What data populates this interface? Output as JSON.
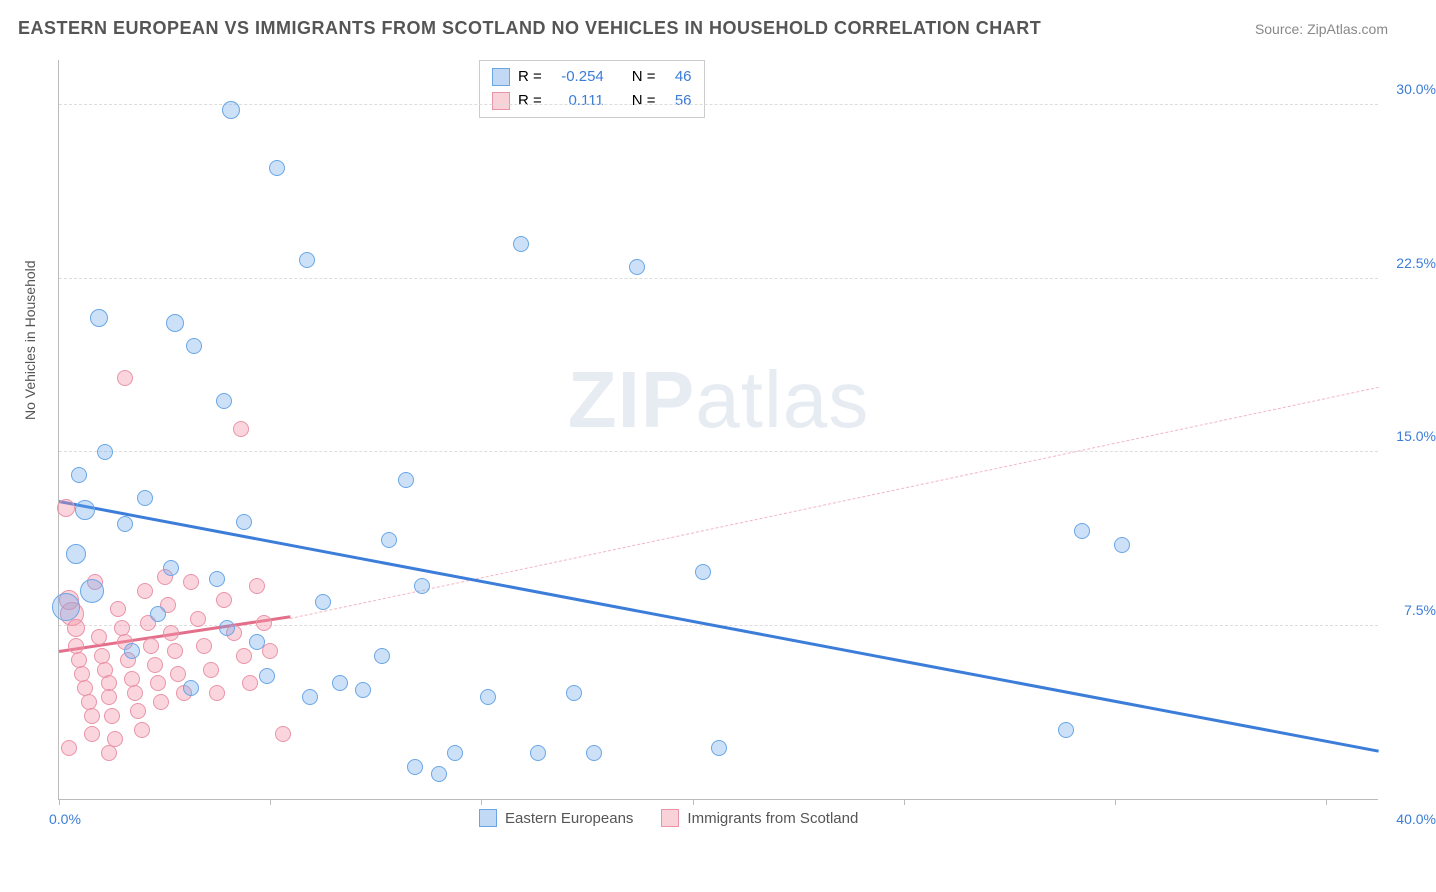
{
  "title": "EASTERN EUROPEAN VS IMMIGRANTS FROM SCOTLAND NO VEHICLES IN HOUSEHOLD CORRELATION CHART",
  "source": "Source: ZipAtlas.com",
  "y_axis_label": "No Vehicles in Household",
  "watermark": "ZIPatlas",
  "chart": {
    "type": "scatter",
    "xlim": [
      0,
      40
    ],
    "ylim": [
      0,
      32
    ],
    "x_ticks": [
      0,
      6.4,
      12.8,
      19.2,
      25.6,
      32.0,
      38.4
    ],
    "y_ticks": [
      7.5,
      15.0,
      22.5,
      30.0
    ],
    "y_tick_labels": [
      "7.5%",
      "15.0%",
      "22.5%",
      "30.0%"
    ],
    "x_min_label": "0.0%",
    "x_max_label": "40.0%",
    "grid_color": "#dddddd",
    "axis_color": "#bbbbbb",
    "background": "#ffffff",
    "tick_label_color": "#3b7dd8",
    "label_color": "#555555"
  },
  "series": {
    "blue": {
      "label": "Eastern Europeans",
      "fill": "rgba(110,170,235,0.35)",
      "stroke": "#6aa6e6",
      "r_stat": "-0.254",
      "n_stat": "46",
      "trend": {
        "x1": 0,
        "y1": 12.8,
        "x2": 40,
        "y2": 2.0,
        "color": "#3b7dd8",
        "width": 3,
        "dash": false
      },
      "points": [
        {
          "x": 5.2,
          "y": 29.8,
          "r": 9
        },
        {
          "x": 6.6,
          "y": 27.3,
          "r": 8
        },
        {
          "x": 7.5,
          "y": 23.3,
          "r": 8
        },
        {
          "x": 14.0,
          "y": 24.0,
          "r": 8
        },
        {
          "x": 17.5,
          "y": 23.0,
          "r": 8
        },
        {
          "x": 1.2,
          "y": 20.8,
          "r": 9
        },
        {
          "x": 3.5,
          "y": 20.6,
          "r": 9
        },
        {
          "x": 4.1,
          "y": 19.6,
          "r": 8
        },
        {
          "x": 5.0,
          "y": 17.2,
          "r": 8
        },
        {
          "x": 1.4,
          "y": 15.0,
          "r": 8
        },
        {
          "x": 0.6,
          "y": 14.0,
          "r": 8
        },
        {
          "x": 10.5,
          "y": 13.8,
          "r": 8
        },
        {
          "x": 2.0,
          "y": 11.9,
          "r": 8
        },
        {
          "x": 31.0,
          "y": 11.6,
          "r": 8
        },
        {
          "x": 32.2,
          "y": 11.0,
          "r": 8
        },
        {
          "x": 0.5,
          "y": 10.6,
          "r": 10
        },
        {
          "x": 19.5,
          "y": 9.8,
          "r": 8
        },
        {
          "x": 10.0,
          "y": 11.2,
          "r": 8
        },
        {
          "x": 1.0,
          "y": 9.0,
          "r": 12
        },
        {
          "x": 0.2,
          "y": 8.3,
          "r": 14
        },
        {
          "x": 4.8,
          "y": 9.5,
          "r": 8
        },
        {
          "x": 3.0,
          "y": 8.0,
          "r": 8
        },
        {
          "x": 5.1,
          "y": 7.4,
          "r": 8
        },
        {
          "x": 6.3,
          "y": 5.3,
          "r": 8
        },
        {
          "x": 7.6,
          "y": 4.4,
          "r": 8
        },
        {
          "x": 8.5,
          "y": 5.0,
          "r": 8
        },
        {
          "x": 9.2,
          "y": 4.7,
          "r": 8
        },
        {
          "x": 9.8,
          "y": 6.2,
          "r": 8
        },
        {
          "x": 10.8,
          "y": 1.4,
          "r": 8
        },
        {
          "x": 11.5,
          "y": 1.1,
          "r": 8
        },
        {
          "x": 12.0,
          "y": 2.0,
          "r": 8
        },
        {
          "x": 13.0,
          "y": 4.4,
          "r": 8
        },
        {
          "x": 14.5,
          "y": 2.0,
          "r": 8
        },
        {
          "x": 15.6,
          "y": 4.6,
          "r": 8
        },
        {
          "x": 16.2,
          "y": 2.0,
          "r": 8
        },
        {
          "x": 20.0,
          "y": 2.2,
          "r": 8
        },
        {
          "x": 11.0,
          "y": 9.2,
          "r": 8
        },
        {
          "x": 30.5,
          "y": 3.0,
          "r": 8
        },
        {
          "x": 6.0,
          "y": 6.8,
          "r": 8
        },
        {
          "x": 2.2,
          "y": 6.4,
          "r": 8
        },
        {
          "x": 4.0,
          "y": 4.8,
          "r": 8
        },
        {
          "x": 3.4,
          "y": 10.0,
          "r": 8
        },
        {
          "x": 0.8,
          "y": 12.5,
          "r": 10
        },
        {
          "x": 5.6,
          "y": 12.0,
          "r": 8
        },
        {
          "x": 8.0,
          "y": 8.5,
          "r": 8
        },
        {
          "x": 2.6,
          "y": 13.0,
          "r": 8
        }
      ]
    },
    "pink": {
      "label": "Immigrants from Scotland",
      "fill": "rgba(245,150,170,0.40)",
      "stroke": "#e994a8",
      "r_stat": "0.111",
      "n_stat": "56",
      "trend_solid": {
        "x1": 0,
        "y1": 6.3,
        "x2": 7,
        "y2": 7.8,
        "color": "#e36f8b",
        "width": 3,
        "dash": false
      },
      "trend_dash": {
        "x1": 7,
        "y1": 7.8,
        "x2": 40,
        "y2": 17.8,
        "color": "#f2b6c4",
        "width": 1,
        "dash": true
      },
      "points": [
        {
          "x": 0.2,
          "y": 12.6,
          "r": 9
        },
        {
          "x": 0.3,
          "y": 8.6,
          "r": 10
        },
        {
          "x": 0.4,
          "y": 8.0,
          "r": 12
        },
        {
          "x": 0.5,
          "y": 7.4,
          "r": 9
        },
        {
          "x": 0.5,
          "y": 6.6,
          "r": 8
        },
        {
          "x": 0.6,
          "y": 6.0,
          "r": 8
        },
        {
          "x": 0.7,
          "y": 5.4,
          "r": 8
        },
        {
          "x": 0.8,
          "y": 4.8,
          "r": 8
        },
        {
          "x": 0.9,
          "y": 4.2,
          "r": 8
        },
        {
          "x": 1.0,
          "y": 3.6,
          "r": 8
        },
        {
          "x": 1.0,
          "y": 2.8,
          "r": 8
        },
        {
          "x": 1.1,
          "y": 9.4,
          "r": 8
        },
        {
          "x": 1.2,
          "y": 7.0,
          "r": 8
        },
        {
          "x": 1.3,
          "y": 6.2,
          "r": 8
        },
        {
          "x": 1.4,
          "y": 5.6,
          "r": 8
        },
        {
          "x": 1.5,
          "y": 5.0,
          "r": 8
        },
        {
          "x": 1.5,
          "y": 4.4,
          "r": 8
        },
        {
          "x": 1.6,
          "y": 3.6,
          "r": 8
        },
        {
          "x": 1.7,
          "y": 2.6,
          "r": 8
        },
        {
          "x": 1.8,
          "y": 8.2,
          "r": 8
        },
        {
          "x": 1.9,
          "y": 7.4,
          "r": 8
        },
        {
          "x": 2.0,
          "y": 6.8,
          "r": 8
        },
        {
          "x": 2.1,
          "y": 6.0,
          "r": 8
        },
        {
          "x": 2.2,
          "y": 5.2,
          "r": 8
        },
        {
          "x": 2.3,
          "y": 4.6,
          "r": 8
        },
        {
          "x": 2.4,
          "y": 3.8,
          "r": 8
        },
        {
          "x": 2.5,
          "y": 3.0,
          "r": 8
        },
        {
          "x": 2.6,
          "y": 9.0,
          "r": 8
        },
        {
          "x": 2.7,
          "y": 7.6,
          "r": 8
        },
        {
          "x": 2.8,
          "y": 6.6,
          "r": 8
        },
        {
          "x": 2.9,
          "y": 5.8,
          "r": 8
        },
        {
          "x": 3.0,
          "y": 5.0,
          "r": 8
        },
        {
          "x": 3.1,
          "y": 4.2,
          "r": 8
        },
        {
          "x": 3.2,
          "y": 9.6,
          "r": 8
        },
        {
          "x": 3.3,
          "y": 8.4,
          "r": 8
        },
        {
          "x": 3.4,
          "y": 7.2,
          "r": 8
        },
        {
          "x": 3.5,
          "y": 6.4,
          "r": 8
        },
        {
          "x": 3.6,
          "y": 5.4,
          "r": 8
        },
        {
          "x": 3.8,
          "y": 4.6,
          "r": 8
        },
        {
          "x": 4.0,
          "y": 9.4,
          "r": 8
        },
        {
          "x": 4.2,
          "y": 7.8,
          "r": 8
        },
        {
          "x": 4.4,
          "y": 6.6,
          "r": 8
        },
        {
          "x": 4.6,
          "y": 5.6,
          "r": 8
        },
        {
          "x": 4.8,
          "y": 4.6,
          "r": 8
        },
        {
          "x": 5.0,
          "y": 8.6,
          "r": 8
        },
        {
          "x": 5.3,
          "y": 7.2,
          "r": 8
        },
        {
          "x": 5.5,
          "y": 16.0,
          "r": 8
        },
        {
          "x": 5.6,
          "y": 6.2,
          "r": 8
        },
        {
          "x": 5.8,
          "y": 5.0,
          "r": 8
        },
        {
          "x": 6.0,
          "y": 9.2,
          "r": 8
        },
        {
          "x": 6.2,
          "y": 7.6,
          "r": 8
        },
        {
          "x": 6.4,
          "y": 6.4,
          "r": 8
        },
        {
          "x": 6.8,
          "y": 2.8,
          "r": 8
        },
        {
          "x": 2.0,
          "y": 18.2,
          "r": 8
        },
        {
          "x": 1.5,
          "y": 2.0,
          "r": 8
        },
        {
          "x": 0.3,
          "y": 2.2,
          "r": 8
        }
      ]
    }
  },
  "stats_labels": {
    "R": "R =",
    "N": "N ="
  },
  "legend": {
    "blue_label": "Eastern Europeans",
    "pink_label": "Immigrants from Scotland"
  }
}
